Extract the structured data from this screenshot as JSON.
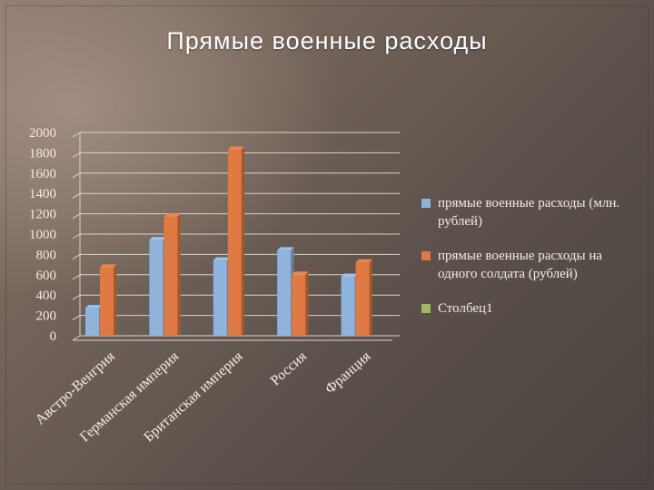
{
  "slide": {
    "title": "Прямые военные расходы"
  },
  "colors": {
    "series1": "#8fb4dc",
    "series2": "#e07a42",
    "series3": "#9bbb59",
    "grid": "#d9d4ce",
    "text": "#f2ede8"
  },
  "chart_data": {
    "type": "bar",
    "title": "",
    "xlabel": "",
    "ylabel": "",
    "ylim": [
      0,
      2000
    ],
    "yticks": [
      0,
      200,
      400,
      600,
      800,
      1000,
      1200,
      1400,
      1600,
      1800,
      2000
    ],
    "grid": true,
    "legend_position": "right",
    "categories": [
      "Австро-Венгрия",
      "Германская империя",
      "Британская империя",
      "Россия",
      "Франция"
    ],
    "series": [
      {
        "name": "прямые военные расходы (млн. рублей)",
        "values": [
          270,
          940,
          740,
          840,
          580
        ]
      },
      {
        "name": "прямые военные расходы на одного солдата (рублей)",
        "values": [
          670,
          1170,
          1830,
          600,
          720
        ]
      },
      {
        "name": "Столбец1",
        "values": [
          0,
          0,
          0,
          0,
          0
        ]
      }
    ]
  }
}
